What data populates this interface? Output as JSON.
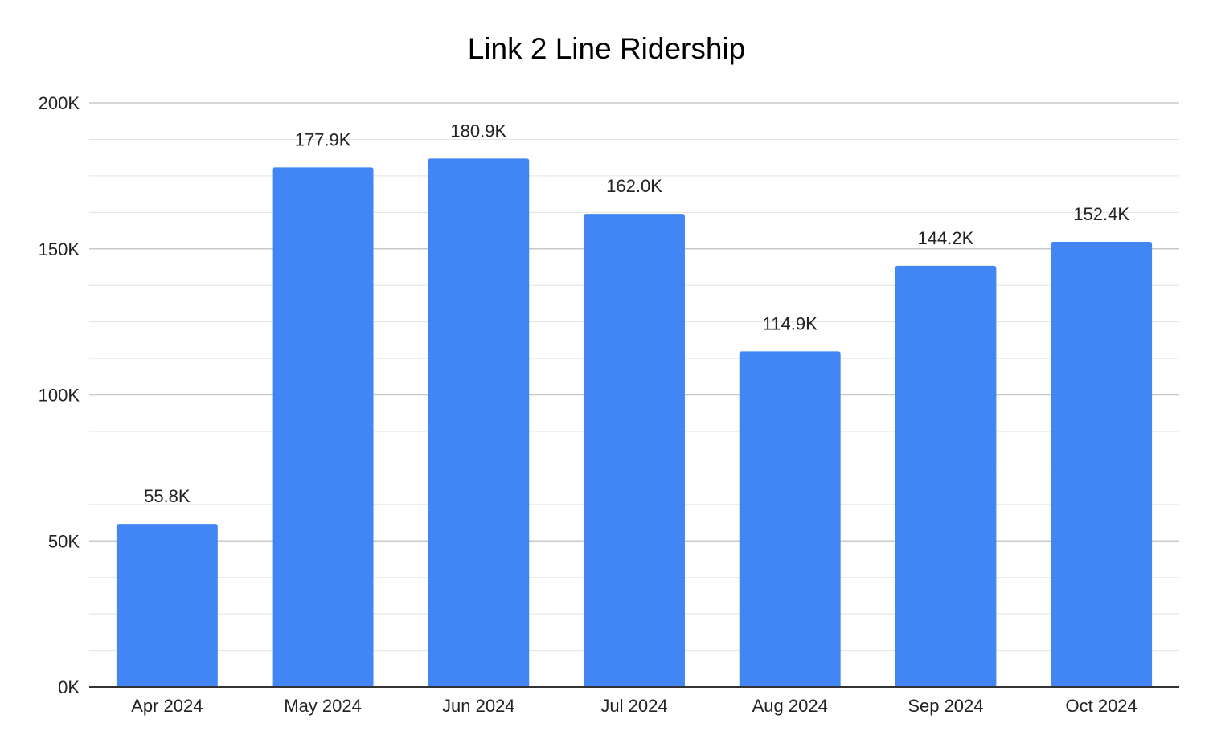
{
  "chart_data": {
    "type": "bar",
    "title": "Link 2 Line Ridership",
    "xlabel": "",
    "ylabel": "",
    "categories": [
      "Apr 2024",
      "May 2024",
      "Jun 2024",
      "Jul 2024",
      "Aug 2024",
      "Sep 2024",
      "Oct 2024"
    ],
    "values": [
      55800,
      177900,
      180900,
      162000,
      114900,
      144200,
      152400
    ],
    "data_labels": [
      "55.8K",
      "177.9K",
      "180.9K",
      "162.0K",
      "114.9K",
      "144.2K",
      "152.4K"
    ],
    "ylim": [
      0,
      200000
    ],
    "y_ticks": [
      0,
      50000,
      100000,
      150000,
      200000
    ],
    "y_tick_labels": [
      "0K",
      "50K",
      "100K",
      "150K",
      "200K"
    ],
    "grid": true,
    "legend": "none",
    "bar_color": "#4285f4"
  }
}
